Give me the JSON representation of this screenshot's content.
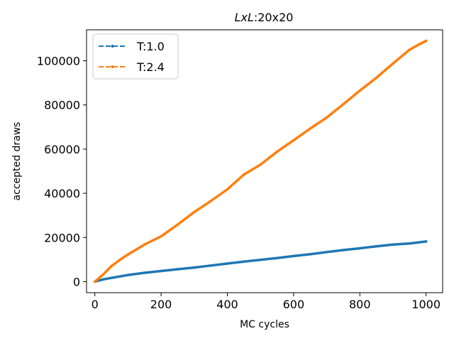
{
  "chart_data": {
    "type": "line",
    "title_italic": "LxL",
    "title_rest": ":20x20",
    "xlabel": "MC cycles",
    "ylabel": "accepted draws",
    "xlim": [
      -25,
      1050
    ],
    "ylim": [
      -5000,
      114000
    ],
    "xticks": [
      0,
      200,
      400,
      600,
      800,
      1000
    ],
    "yticks": [
      0,
      20000,
      40000,
      60000,
      80000,
      100000
    ],
    "grid": false,
    "legend_position": "top-left",
    "series": [
      {
        "name": "T:1.0",
        "color": "#1f77b4",
        "x": [
          0,
          25,
          50,
          100,
          150,
          200,
          250,
          300,
          350,
          400,
          450,
          500,
          550,
          600,
          650,
          700,
          750,
          800,
          850,
          900,
          950,
          1000
        ],
        "y": [
          0,
          1000,
          1700,
          3000,
          4000,
          4800,
          5600,
          6400,
          7300,
          8200,
          9100,
          9900,
          10700,
          11600,
          12400,
          13400,
          14300,
          15100,
          16000,
          16800,
          17300,
          18200
        ]
      },
      {
        "name": "T:2.4",
        "color": "#ff7f0e",
        "x": [
          0,
          25,
          50,
          75,
          100,
          150,
          200,
          250,
          300,
          350,
          400,
          450,
          500,
          550,
          600,
          650,
          700,
          750,
          800,
          850,
          900,
          950,
          980,
          1000
        ],
        "y": [
          0,
          3200,
          7000,
          9800,
          12300,
          16800,
          20500,
          25800,
          31500,
          36500,
          41800,
          48500,
          53000,
          58800,
          64000,
          69300,
          74300,
          80300,
          86500,
          92300,
          98800,
          105000,
          107500,
          109000
        ]
      }
    ]
  }
}
